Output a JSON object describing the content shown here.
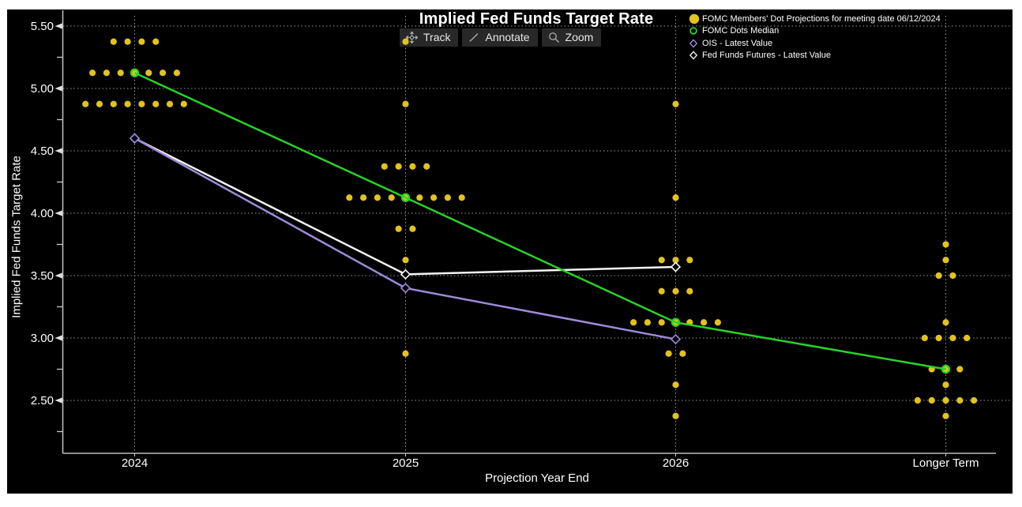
{
  "title": "Implied Fed Funds Target Rate",
  "toolbar": {
    "track_label": "Track",
    "annotate_label": "Annotate",
    "zoom_label": "Zoom"
  },
  "legend": [
    {
      "label": "FOMC Members' Dot Projections for meeting date 06/12/2024",
      "marker": "filled-circle",
      "color": "#e2c31d"
    },
    {
      "label": "FOMC Dots Median",
      "marker": "open-circle",
      "color": "#28d228"
    },
    {
      "label": "OIS - Latest Value",
      "marker": "open-diamond",
      "color": "#9e8ad8"
    },
    {
      "label": "Fed Funds Futures - Latest Value",
      "marker": "open-diamond",
      "color": "#ececec"
    }
  ],
  "colors": {
    "background": "#000000",
    "dots": "#e2c31d",
    "median": "#28d228",
    "ois": "#9e8ad8",
    "futures": "#f5f5f5",
    "grid": "#999999",
    "axis": "#bbbbbb",
    "text": "#ffffff"
  },
  "chart_data": {
    "type": "scatter",
    "title": "Implied Fed Funds Target Rate",
    "xlabel": "Projection Year End",
    "ylabel": "Implied Fed Funds Target Rate",
    "categories": [
      "2024",
      "2025",
      "2026",
      "Longer Term"
    ],
    "ylim": [
      2.1,
      5.5
    ],
    "y_major_ticks": [
      5.5,
      5.0,
      4.5,
      4.0,
      3.5,
      3.0,
      2.5
    ],
    "y_major_tick_labels": [
      "5.50",
      "5.00",
      "4.50",
      "4.00",
      "3.50",
      "3.00",
      "2.50"
    ],
    "y_minor_ticks": [
      5.25,
      4.75,
      4.25,
      3.75,
      3.25,
      2.75,
      2.25
    ],
    "grid": "dotted",
    "legend_position": "top-right",
    "dot_projections": [
      {
        "category": "2024",
        "points": [
          {
            "value": 5.375,
            "count": 4
          },
          {
            "value": 5.125,
            "count": 7
          },
          {
            "value": 4.875,
            "count": 8
          }
        ]
      },
      {
        "category": "2025",
        "points": [
          {
            "value": 5.375,
            "count": 1
          },
          {
            "value": 4.875,
            "count": 1
          },
          {
            "value": 4.375,
            "count": 4
          },
          {
            "value": 4.125,
            "count": 9
          },
          {
            "value": 3.875,
            "count": 2
          },
          {
            "value": 3.625,
            "count": 1
          },
          {
            "value": 2.875,
            "count": 1
          }
        ]
      },
      {
        "category": "2026",
        "points": [
          {
            "value": 4.875,
            "count": 1
          },
          {
            "value": 4.125,
            "count": 1
          },
          {
            "value": 3.625,
            "count": 3
          },
          {
            "value": 3.375,
            "count": 3
          },
          {
            "value": 3.125,
            "count": 7
          },
          {
            "value": 2.875,
            "count": 2
          },
          {
            "value": 2.625,
            "count": 1
          },
          {
            "value": 2.375,
            "count": 1
          }
        ]
      },
      {
        "category": "Longer Term",
        "points": [
          {
            "value": 3.75,
            "count": 1
          },
          {
            "value": 3.625,
            "count": 1
          },
          {
            "value": 3.5,
            "count": 2
          },
          {
            "value": 3.125,
            "count": 1
          },
          {
            "value": 3.0,
            "count": 4
          },
          {
            "value": 2.75,
            "count": 3
          },
          {
            "value": 2.625,
            "count": 1
          },
          {
            "value": 2.5,
            "count": 5
          },
          {
            "value": 2.375,
            "count": 1
          }
        ]
      }
    ],
    "series": [
      {
        "name": "Fed Funds Futures - Latest Value",
        "marker": "open-diamond",
        "color": "#f5f5f5",
        "values": [
          4.6,
          3.51,
          3.57,
          null
        ]
      },
      {
        "name": "OIS - Latest Value",
        "marker": "open-diamond",
        "color": "#9e8ad8",
        "values": [
          4.6,
          3.4,
          2.99,
          null
        ]
      },
      {
        "name": "FOMC Dots Median",
        "marker": "open-circle",
        "color": "#28d228",
        "values": [
          5.125,
          4.125,
          3.125,
          2.75
        ]
      }
    ]
  },
  "axes": {
    "x": {
      "label": "Projection Year End"
    },
    "y": {
      "label": "Implied Fed Funds Target Rate"
    }
  }
}
